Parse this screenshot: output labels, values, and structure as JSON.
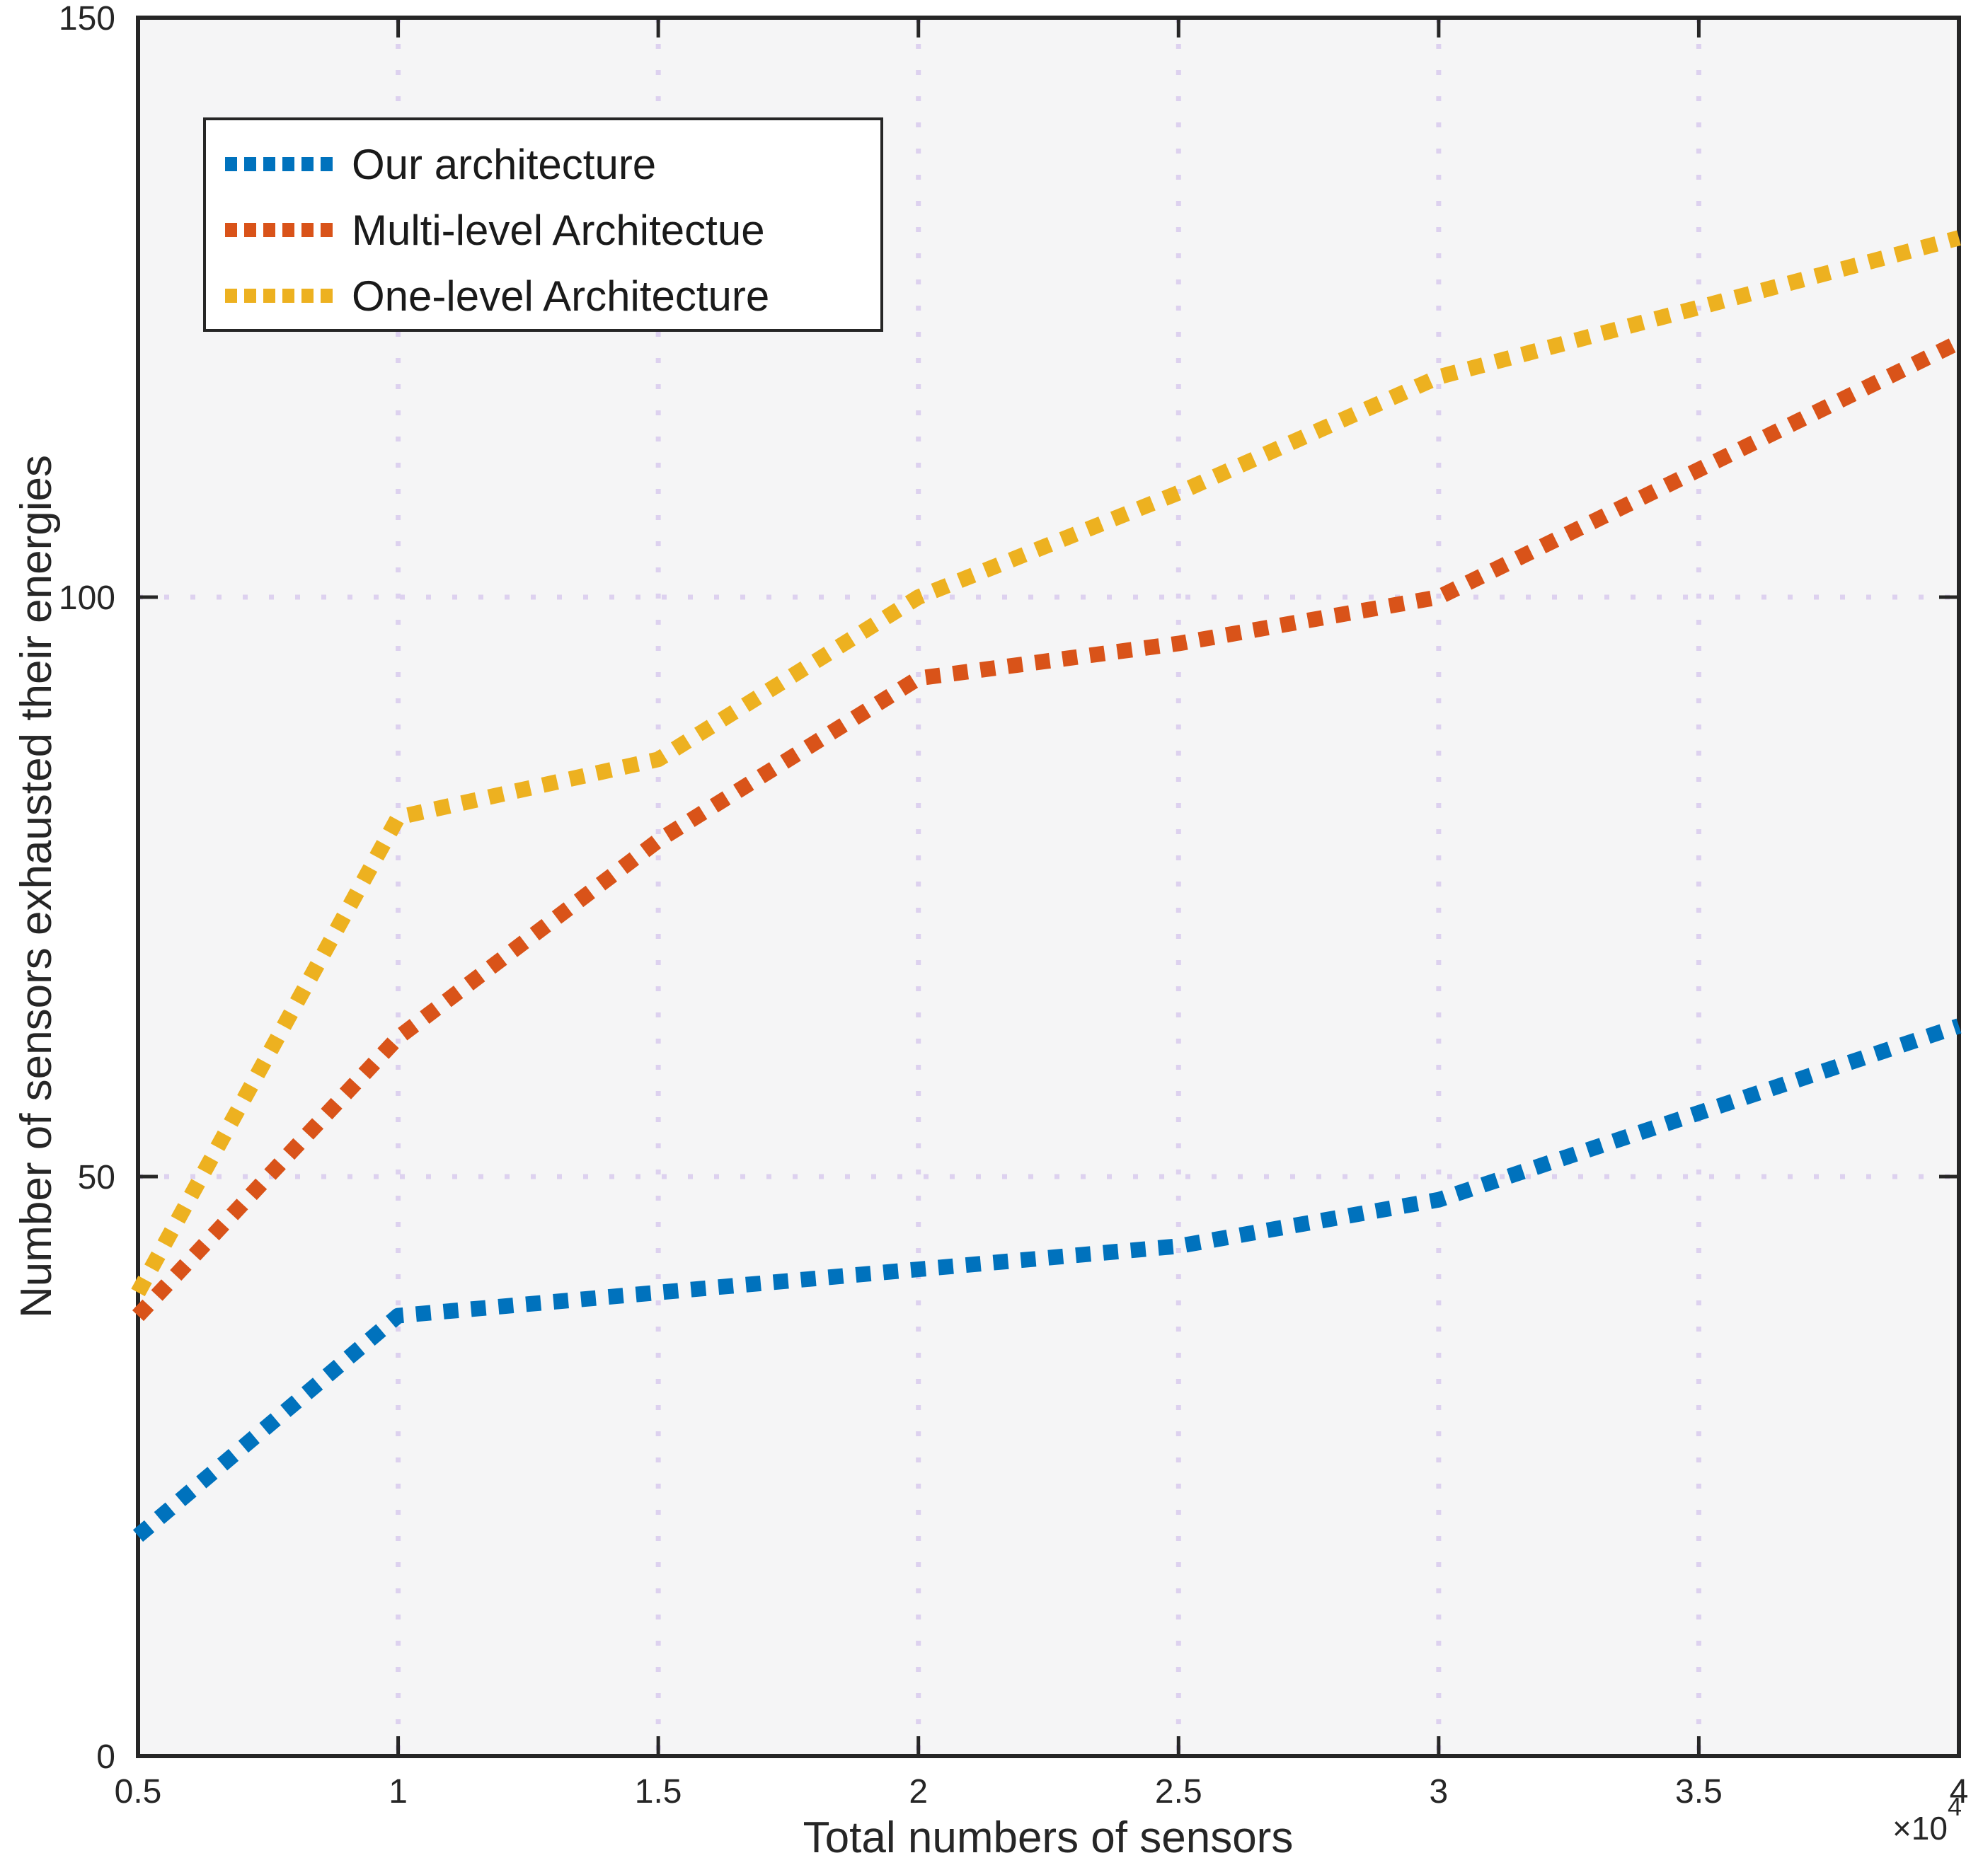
{
  "figure": {
    "background": "#ffffff",
    "plot_background": "#f5f5f6",
    "axis_color": "#262626",
    "grid_color": "#ddd1ef"
  },
  "legend": {
    "position": "top-left",
    "items": [
      {
        "label": "Our architecture",
        "color": "#0072BD"
      },
      {
        "label": "Multi-level Architectue",
        "color": "#D95319"
      },
      {
        "label": "One-level Architecture",
        "color": "#EDB120"
      }
    ]
  },
  "chart_data": {
    "type": "line",
    "title": "",
    "xlabel": "Total  numbers of sensors",
    "ylabel": "Number of sensors exhausted their energies",
    "x_unit_multiplier": {
      "base": "×10",
      "exp": "4"
    },
    "x": [
      0.5,
      1,
      1.5,
      2,
      2.5,
      3,
      4
    ],
    "series": [
      {
        "name": "Our architecture",
        "color": "#0072BD",
        "values": [
          19,
          38,
          40,
          42,
          44,
          48,
          63
        ]
      },
      {
        "name": "Multi-level Architectue",
        "color": "#D95319",
        "values": [
          38,
          62,
          79,
          93,
          96,
          100,
          122
        ]
      },
      {
        "name": "One-level Architecture",
        "color": "#EDB120",
        "values": [
          40,
          81,
          86,
          100,
          109,
          119,
          131
        ]
      }
    ],
    "xlim": [
      0.5,
      4
    ],
    "ylim": [
      0,
      150
    ],
    "x_ticks": {
      "values": [
        0.5,
        1,
        1.5,
        2,
        2.5,
        3,
        3.5,
        4
      ],
      "labels": [
        "0.5",
        "1",
        "1.5",
        "2",
        "2.5",
        "3",
        "3.5",
        "4"
      ]
    },
    "y_ticks": {
      "values": [
        0,
        50,
        100,
        150
      ],
      "labels": [
        "0",
        "50",
        "100",
        "150"
      ]
    },
    "grid": true,
    "line_style": "dotted",
    "legend_position": "top-left"
  }
}
